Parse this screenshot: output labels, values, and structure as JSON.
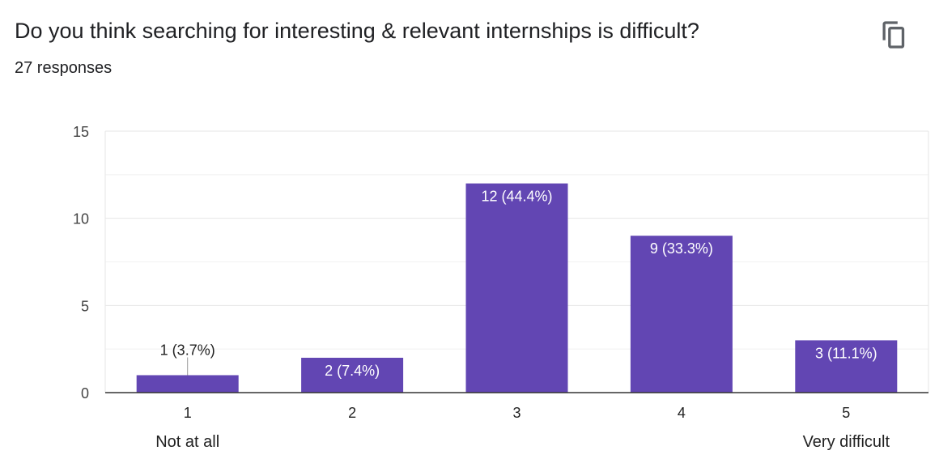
{
  "header": {
    "question": "Do you think searching for interesting & relevant internships is difficult?",
    "responses": "27 responses",
    "copy_icon": "copy-icon"
  },
  "colors": {
    "bar": "#6246b3",
    "grid": "#e6e6e6",
    "axis": "#333333",
    "label_inside": "#ffffff",
    "label_outside": "#222222"
  },
  "chart_data": {
    "type": "bar",
    "categories": [
      "1",
      "2",
      "3",
      "4",
      "5"
    ],
    "category_sublabels": [
      "Not at all",
      "",
      "",
      "",
      "Very difficult"
    ],
    "values": [
      1,
      2,
      12,
      9,
      3
    ],
    "data_labels": [
      "1 (3.7%)",
      "2 (7.4%)",
      "12 (44.4%)",
      "9 (33.3%)",
      "3 (11.1%)"
    ],
    "ylim": [
      0,
      15
    ],
    "yticks": [
      0,
      5,
      10,
      15
    ],
    "minor_gridlines": true,
    "title": "",
    "xlabel": "",
    "ylabel": ""
  }
}
